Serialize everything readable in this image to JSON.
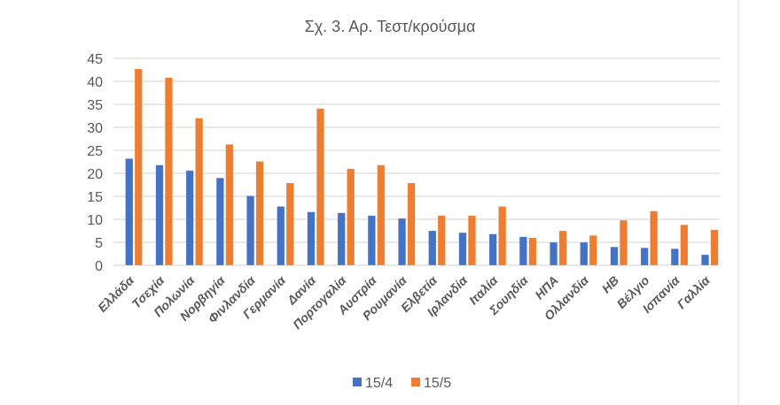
{
  "chart_data": {
    "type": "bar",
    "title": "Σχ. 3. Αρ. Τεστ/κρούσμα",
    "xlabel": "",
    "ylabel": "",
    "ylim": [
      0,
      45
    ],
    "yticks": [
      0,
      5,
      10,
      15,
      20,
      25,
      30,
      35,
      40,
      45
    ],
    "grid": true,
    "legend_position": "bottom",
    "categories": [
      "Ελλάδα",
      "Τσεχία",
      "Πολωνία",
      "Νορβηγία",
      "Φινλανδία",
      "Γερμανία",
      "Δανία",
      "Πορτογαλία",
      "Αυστρία",
      "Ρουμανία",
      "Ελβετία",
      "Ιρλανδία",
      "Ιταλία",
      "Σουηδία",
      "ΗΠΑ",
      "Ολλανδία",
      "ΗΒ",
      "Βέλγιο",
      "Ισπανία",
      "Γαλλία"
    ],
    "series": [
      {
        "name": "15/4",
        "color": "#4472C4",
        "values": [
          23.2,
          21.8,
          20.6,
          19.0,
          15.1,
          12.8,
          11.6,
          11.4,
          10.8,
          10.2,
          7.5,
          7.1,
          6.8,
          6.2,
          5.0,
          5.0,
          4.0,
          3.8,
          3.6,
          2.3
        ]
      },
      {
        "name": "15/5",
        "color": "#ED7D31",
        "values": [
          42.7,
          40.8,
          32.0,
          26.3,
          22.6,
          17.9,
          34.1,
          21.0,
          21.8,
          17.9,
          10.8,
          10.8,
          12.8,
          6.0,
          7.5,
          6.5,
          9.8,
          11.8,
          8.8,
          7.7
        ]
      }
    ]
  }
}
